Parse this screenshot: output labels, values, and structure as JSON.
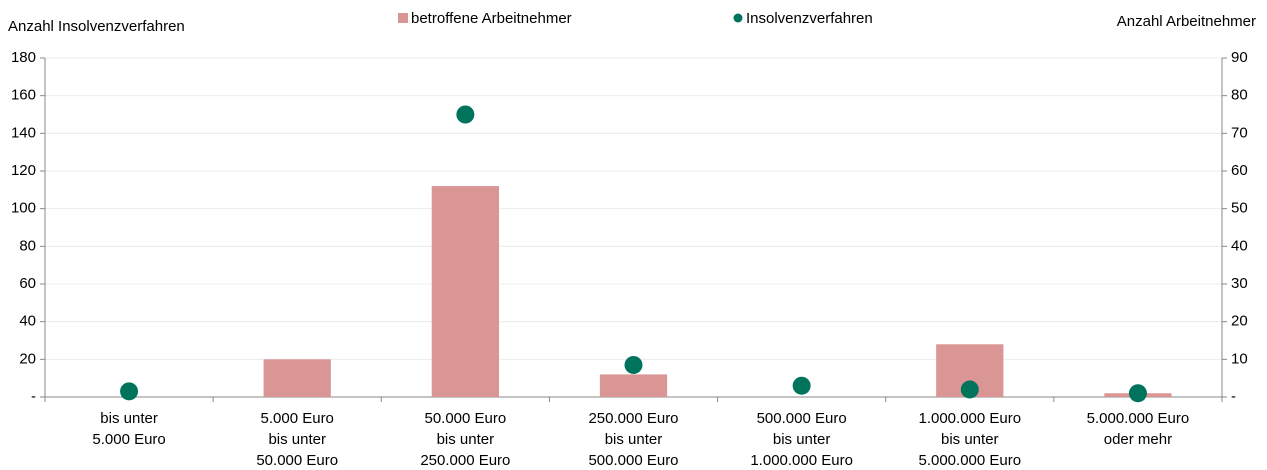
{
  "chart_data": {
    "type": "bar_dot",
    "y_label": "Anzahl Insolvenzverfahren",
    "y2_label": "Anzahl Arbeitnehmer",
    "categories": [
      [
        "bis unter",
        "5.000 Euro"
      ],
      [
        "5.000 Euro",
        "bis unter",
        "50.000 Euro"
      ],
      [
        "50.000 Euro",
        "bis unter",
        "250.000 Euro"
      ],
      [
        "250.000 Euro",
        "bis unter",
        "500.000 Euro"
      ],
      [
        "500.000 Euro",
        "bis unter",
        "1.000.000 Euro"
      ],
      [
        "1.000.000 Euro",
        "bis unter",
        "5.000.000 Euro"
      ],
      [
        "5.000.000 Euro",
        "oder mehr"
      ]
    ],
    "series": [
      {
        "name": "betroffene Arbeitnehmer",
        "kind": "bar",
        "axis": "y2",
        "color": "#d99694",
        "values": [
          0,
          10,
          56,
          6,
          0,
          14,
          1
        ]
      },
      {
        "name": "Insolvenzverfahren",
        "kind": "dot",
        "axis": "y",
        "color": "#00735c",
        "values": [
          3,
          null,
          150,
          17,
          6,
          4,
          2
        ]
      }
    ],
    "ylim": [
      0,
      180
    ],
    "yticks": [
      {
        "value": 0,
        "label": "-"
      },
      20,
      40,
      60,
      80,
      100,
      120,
      140,
      160,
      180
    ],
    "y2lim": [
      0,
      90
    ],
    "y2ticks": [
      {
        "value": 0,
        "label": "-"
      },
      10,
      20,
      30,
      40,
      50,
      60,
      70,
      80,
      90
    ],
    "grid": true
  }
}
